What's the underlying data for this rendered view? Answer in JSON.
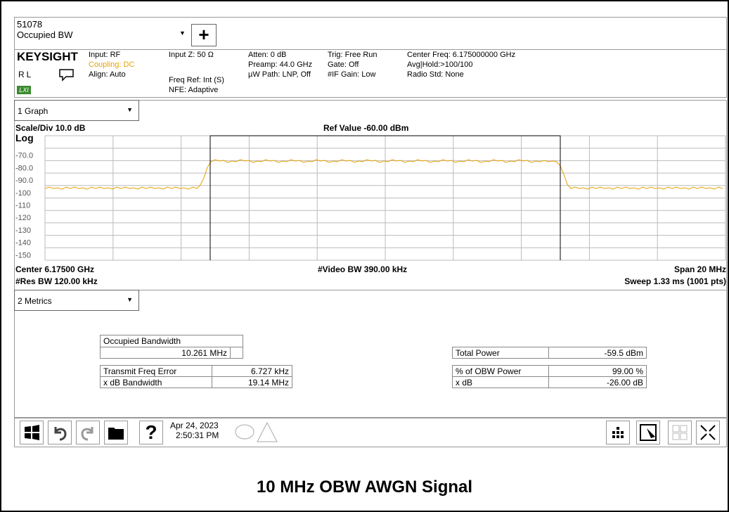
{
  "header": {
    "id": "51078",
    "mode": "Occupied BW"
  },
  "info": {
    "brand": "KEYSIGHT",
    "rl": "RL",
    "lxi": "LXI",
    "col1": [
      "Input: RF",
      "Coupling: DC",
      "Align: Auto"
    ],
    "col2": [
      "Input Z: 50 Ω",
      "Freq Ref: Int (S)",
      "NFE: Adaptive"
    ],
    "col3": [
      "Atten: 0 dB",
      "Preamp: 44.0 GHz",
      "µW Path: LNP, Off"
    ],
    "col4": [
      "Trig: Free Run",
      "Gate: Off",
      "#IF Gain: Low"
    ],
    "col5": [
      "Center Freq: 6.175000000 GHz",
      "Avg|Hold:>100/100",
      "Radio Std: None"
    ]
  },
  "graph": {
    "selector": "1 Graph",
    "scale": "Scale/Div 10.0 dB",
    "ref": "Ref Value -60.00 dBm",
    "y_labels": [
      "Log",
      "-70.0",
      "-80.0",
      "-90.0",
      "-100",
      "-110",
      "-120",
      "-130",
      "-140",
      "-150"
    ],
    "center": "Center 6.17500 GHz",
    "vbw": "#Video BW 390.00 kHz",
    "span": "Span 20 MHz",
    "rbw": "#Res BW 120.00 kHz",
    "sweep": "Sweep 1.33 ms (1001 pts)"
  },
  "metrics": {
    "selector": "2 Metrics",
    "obw_label": "Occupied Bandwidth",
    "obw_value": "10.261 MHz",
    "left_rows": [
      [
        "Transmit Freq Error",
        "6.727 kHz"
      ],
      [
        "x dB Bandwidth",
        "19.14 MHz"
      ]
    ],
    "right_rows": [
      [
        "Total Power",
        "-59.5 dBm"
      ],
      [
        "% of OBW Power",
        "99.00 %"
      ],
      [
        "x dB",
        "-26.00 dB"
      ]
    ]
  },
  "taskbar": {
    "date": "Apr 24, 2023",
    "time": "2:50:31 PM"
  },
  "caption": "10 MHz OBW AWGN Signal"
}
